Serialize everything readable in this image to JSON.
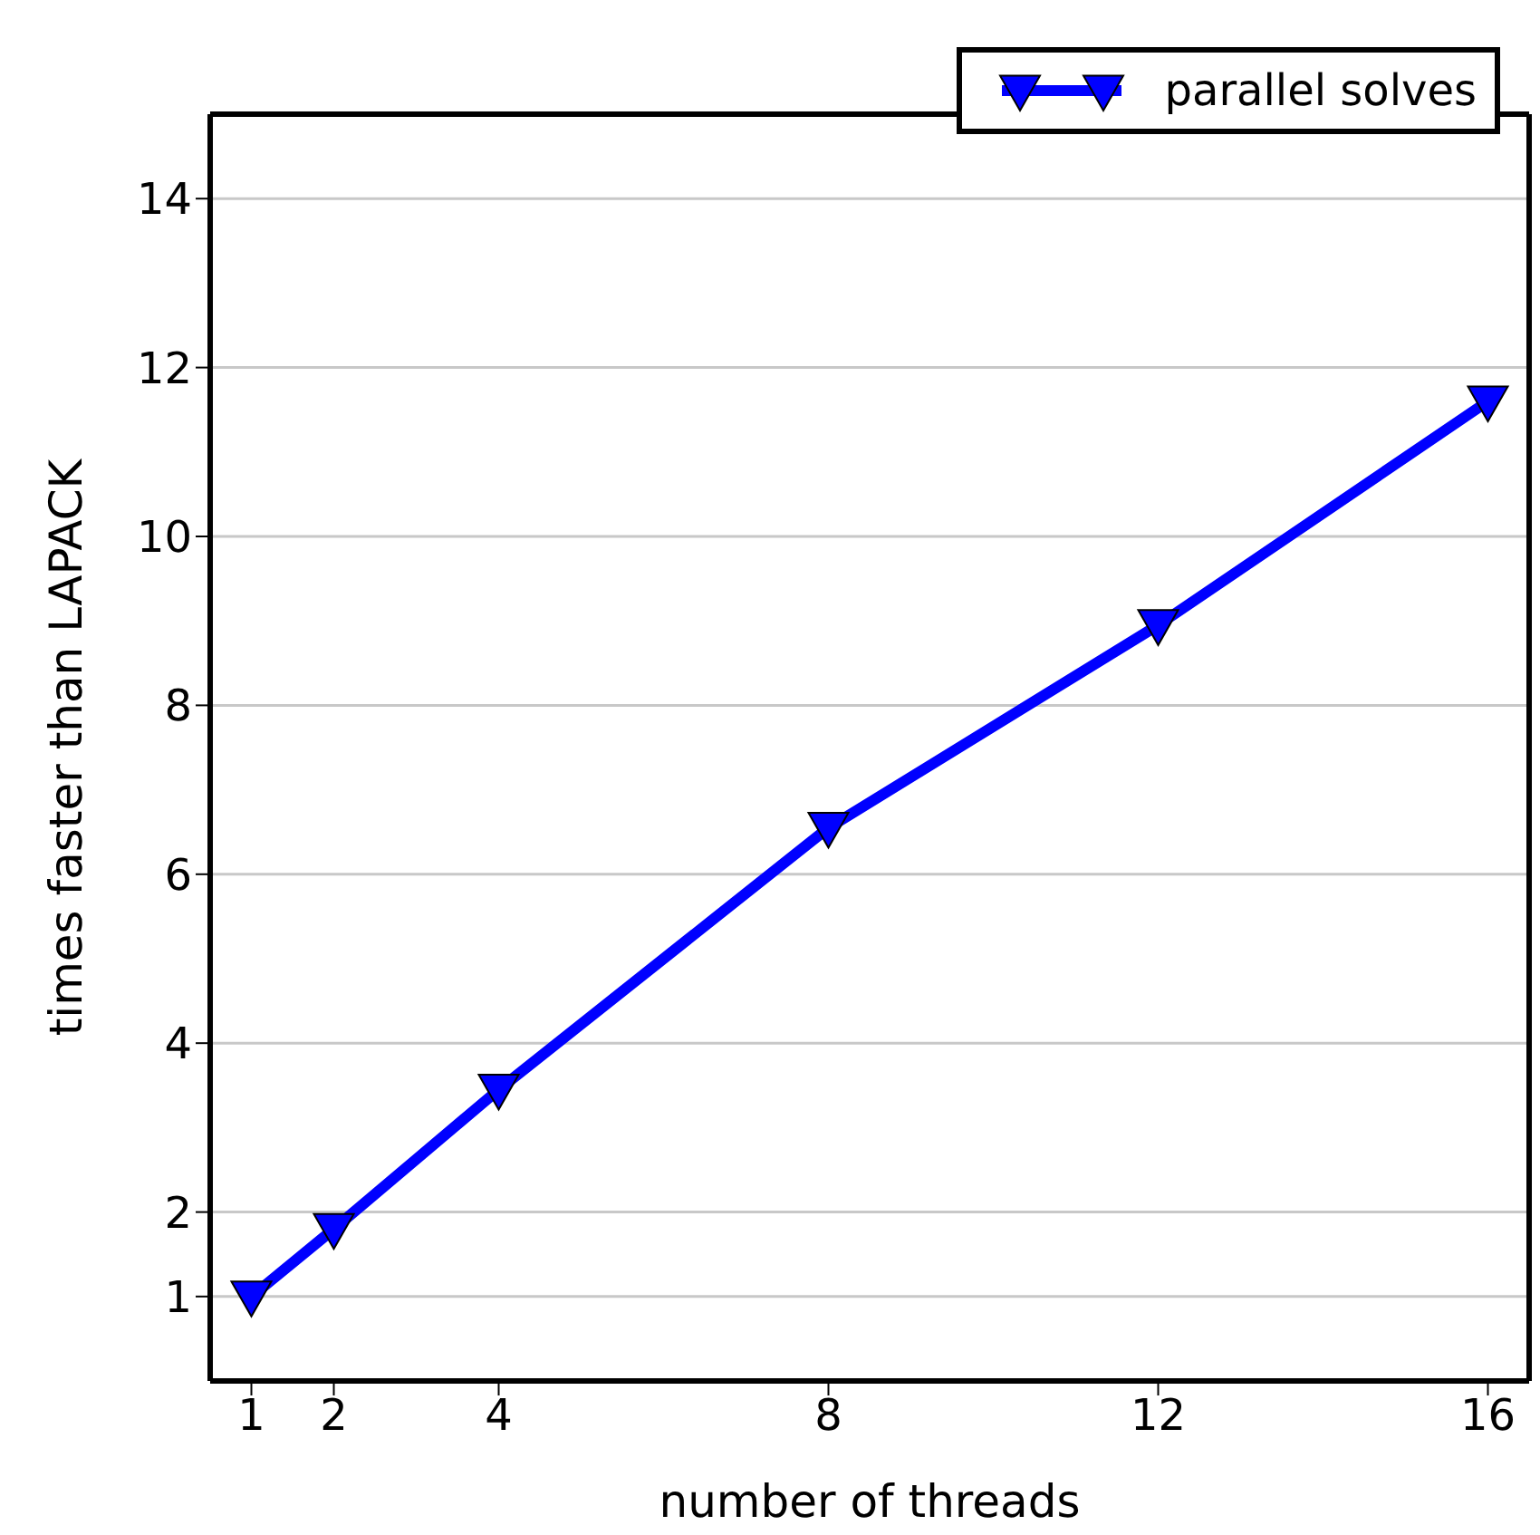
{
  "chart_data": {
    "type": "line",
    "xlabel": "number of threads",
    "ylabel": "times faster than LAPACK",
    "x": [
      1,
      2,
      4,
      8,
      12,
      16
    ],
    "series": [
      {
        "name": "parallel solves",
        "color": "#0000ff",
        "values": [
          1.0,
          1.8,
          3.45,
          6.55,
          8.95,
          11.6
        ]
      }
    ],
    "xlim": [
      0.5,
      16.5
    ],
    "xticks": [
      1,
      2,
      4,
      8,
      12,
      16
    ],
    "ylim": [
      0,
      15
    ],
    "yticks": [
      1,
      2,
      4,
      6,
      8,
      10,
      12,
      14
    ],
    "grid": "y",
    "legend": "top right",
    "marker": "triangle",
    "line_style": "solid"
  }
}
